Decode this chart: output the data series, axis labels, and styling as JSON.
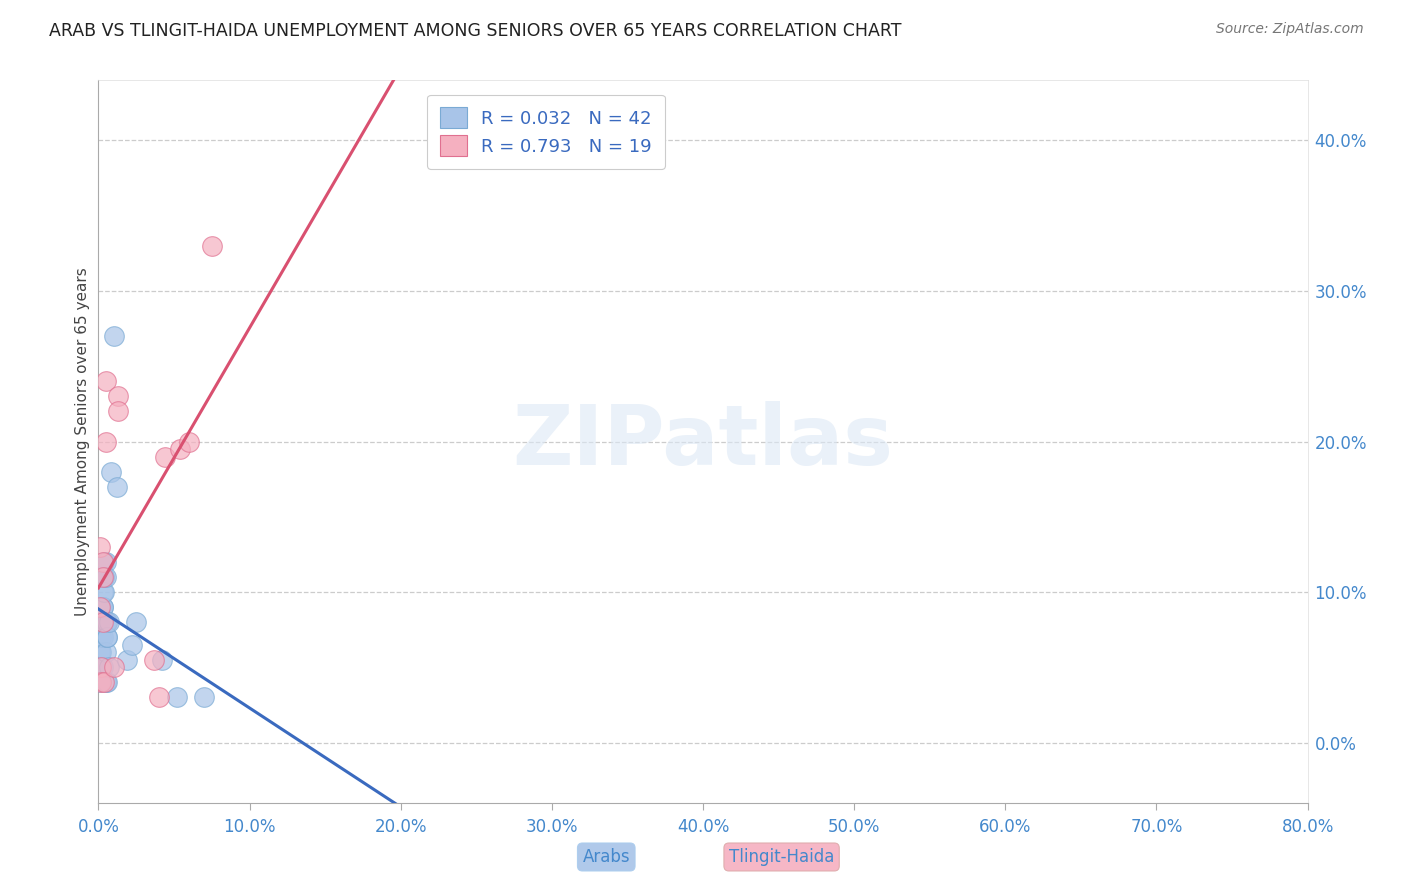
{
  "title": "ARAB VS TLINGIT-HAIDA UNEMPLOYMENT AMONG SENIORS OVER 65 YEARS CORRELATION CHART",
  "source": "Source: ZipAtlas.com",
  "ylabel": "Unemployment Among Seniors over 65 years",
  "xlim": [
    0.0,
    0.8
  ],
  "ylim": [
    -0.04,
    0.44
  ],
  "yticks": [
    0.0,
    0.1,
    0.2,
    0.3,
    0.4
  ],
  "xticks": [
    0.0,
    0.1,
    0.2,
    0.3,
    0.4,
    0.5,
    0.6,
    0.7,
    0.8
  ],
  "arab_color": "#a8c4e8",
  "arab_edge_color": "#7aaad4",
  "tlingit_color": "#f5b0c0",
  "tlingit_edge_color": "#e07090",
  "arab_line_color": "#3a6abf",
  "tlingit_line_color": "#d95070",
  "arab_R": 0.032,
  "arab_N": 42,
  "tlingit_R": 0.793,
  "tlingit_N": 19,
  "watermark": "ZIPatlas",
  "background_color": "#ffffff",
  "grid_color": "#cccccc",
  "arab_x": [
    0.001,
    0.001,
    0.001,
    0.001,
    0.002,
    0.002,
    0.002,
    0.002,
    0.002,
    0.003,
    0.003,
    0.003,
    0.003,
    0.003,
    0.003,
    0.003,
    0.004,
    0.004,
    0.004,
    0.004,
    0.004,
    0.005,
    0.005,
    0.005,
    0.005,
    0.005,
    0.006,
    0.006,
    0.006,
    0.006,
    0.006,
    0.007,
    0.007,
    0.008,
    0.01,
    0.012,
    0.019,
    0.022,
    0.025,
    0.042,
    0.052,
    0.07
  ],
  "arab_y": [
    0.06,
    0.05,
    0.05,
    0.04,
    0.09,
    0.08,
    0.07,
    0.06,
    0.05,
    0.11,
    0.1,
    0.09,
    0.09,
    0.08,
    0.07,
    0.05,
    0.12,
    0.11,
    0.11,
    0.1,
    0.08,
    0.12,
    0.11,
    0.08,
    0.06,
    0.04,
    0.08,
    0.08,
    0.07,
    0.07,
    0.04,
    0.08,
    0.05,
    0.18,
    0.27,
    0.17,
    0.055,
    0.065,
    0.08,
    0.055,
    0.03,
    0.03
  ],
  "tlingit_x": [
    0.001,
    0.001,
    0.002,
    0.002,
    0.003,
    0.003,
    0.003,
    0.004,
    0.005,
    0.005,
    0.01,
    0.013,
    0.013,
    0.037,
    0.04,
    0.044,
    0.054,
    0.06,
    0.075
  ],
  "tlingit_y": [
    0.13,
    0.09,
    0.05,
    0.04,
    0.12,
    0.11,
    0.08,
    0.04,
    0.24,
    0.2,
    0.05,
    0.23,
    0.22,
    0.055,
    0.03,
    0.19,
    0.195,
    0.2,
    0.33
  ],
  "marker_size": 200
}
